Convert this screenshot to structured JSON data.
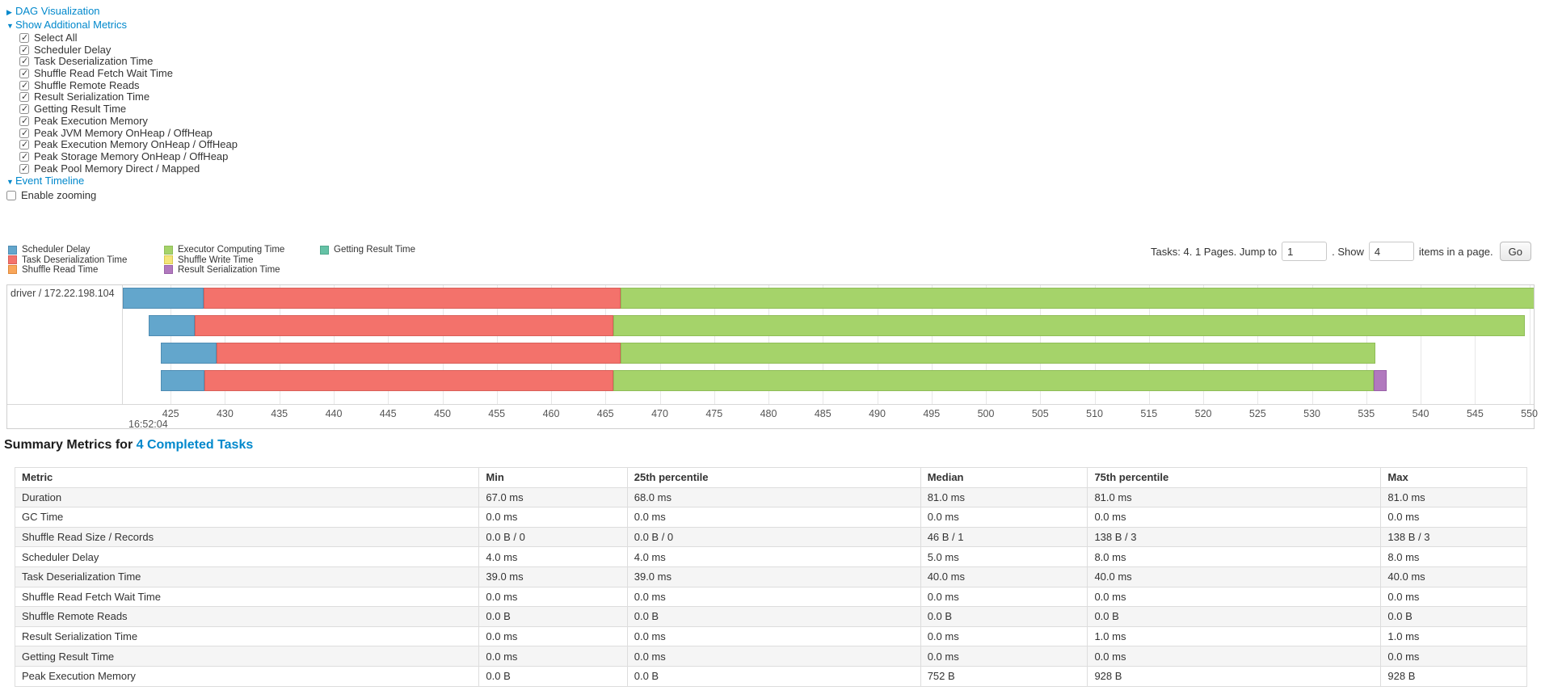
{
  "controls": {
    "dag_visualization": "DAG Visualization",
    "show_additional_metrics": "Show Additional Metrics",
    "metric_checkboxes": [
      {
        "label": "Select All",
        "checked": true
      },
      {
        "label": "Scheduler Delay",
        "checked": true
      },
      {
        "label": "Task Deserialization Time",
        "checked": true
      },
      {
        "label": "Shuffle Read Fetch Wait Time",
        "checked": true
      },
      {
        "label": "Shuffle Remote Reads",
        "checked": true
      },
      {
        "label": "Result Serialization Time",
        "checked": true
      },
      {
        "label": "Getting Result Time",
        "checked": true
      },
      {
        "label": "Peak Execution Memory",
        "checked": true
      },
      {
        "label": "Peak JVM Memory OnHeap / OffHeap",
        "checked": true
      },
      {
        "label": "Peak Execution Memory OnHeap / OffHeap",
        "checked": true
      },
      {
        "label": "Peak Storage Memory OnHeap / OffHeap",
        "checked": true
      },
      {
        "label": "Peak Pool Memory Direct / Mapped",
        "checked": true
      }
    ],
    "event_timeline": "Event Timeline",
    "enable_zooming": {
      "label": "Enable zooming",
      "checked": false
    }
  },
  "pagination": {
    "tasks_label": "Tasks: 4. 1 Pages. Jump to",
    "jump_value": "1",
    "show_label": ". Show",
    "show_value": "4",
    "items_label": "items in a page.",
    "go_label": "Go"
  },
  "legend": [
    {
      "key": "scheduler_delay",
      "label": "Scheduler Delay"
    },
    {
      "key": "task_deserialization",
      "label": "Task Deserialization Time"
    },
    {
      "key": "shuffle_read",
      "label": "Shuffle Read Time"
    },
    {
      "key": "executor_computing",
      "label": "Executor Computing Time"
    },
    {
      "key": "shuffle_write",
      "label": "Shuffle Write Time"
    },
    {
      "key": "result_serialization",
      "label": "Result Serialization Time"
    },
    {
      "key": "getting_result",
      "label": "Getting Result Time"
    }
  ],
  "chart_data": {
    "type": "timeline",
    "group_label": "driver / 172.22.198.104",
    "axis": {
      "min": 420.6,
      "max": 550.4,
      "tick_interval": 5,
      "ticks": [
        425,
        430,
        435,
        440,
        445,
        450,
        455,
        460,
        465,
        470,
        475,
        480,
        485,
        490,
        495,
        500,
        505,
        510,
        515,
        520,
        525,
        530,
        535,
        540,
        545,
        550
      ],
      "major_label": "16:52:04"
    },
    "colors": {
      "scheduler_delay": {
        "fill": "#63A6CC",
        "border": "#4E8CB3"
      },
      "task_deserialization": {
        "fill": "#F3726B",
        "border": "#D95F59"
      },
      "shuffle_read": {
        "fill": "#F9A65A",
        "border": "#E08A3C"
      },
      "executor_computing": {
        "fill": "#A5D36A",
        "border": "#8FBD57"
      },
      "shuffle_write": {
        "fill": "#F3E57A",
        "border": "#D9C94F"
      },
      "result_serialization": {
        "fill": "#B179BE",
        "border": "#9A61A8"
      },
      "getting_result": {
        "fill": "#65C2A6",
        "border": "#4FA88C"
      }
    },
    "tasks": [
      {
        "segments": [
          [
            "scheduler_delay",
            420.6,
            428.0
          ],
          [
            "task_deserialization",
            428.0,
            466.4
          ],
          [
            "executor_computing",
            466.4,
            550.9
          ]
        ]
      },
      {
        "segments": [
          [
            "scheduler_delay",
            423.0,
            427.2
          ],
          [
            "task_deserialization",
            427.2,
            465.7
          ],
          [
            "executor_computing",
            465.7,
            549.6
          ]
        ]
      },
      {
        "segments": [
          [
            "scheduler_delay",
            424.1,
            429.2
          ],
          [
            "task_deserialization",
            429.2,
            466.4
          ],
          [
            "executor_computing",
            466.4,
            535.8
          ]
        ]
      },
      {
        "segments": [
          [
            "scheduler_delay",
            424.1,
            428.1
          ],
          [
            "task_deserialization",
            428.1,
            465.7
          ],
          [
            "executor_computing",
            465.7,
            535.7
          ],
          [
            "result_serialization",
            535.7,
            536.9
          ]
        ]
      }
    ]
  },
  "summary": {
    "title_prefix": "Summary Metrics for ",
    "title_link": "4 Completed Tasks",
    "table": {
      "headers": [
        "Metric",
        "Min",
        "25th percentile",
        "Median",
        "75th percentile",
        "Max"
      ],
      "rows": [
        [
          "Duration",
          "67.0 ms",
          "68.0 ms",
          "81.0 ms",
          "81.0 ms",
          "81.0 ms"
        ],
        [
          "GC Time",
          "0.0 ms",
          "0.0 ms",
          "0.0 ms",
          "0.0 ms",
          "0.0 ms"
        ],
        [
          "Shuffle Read Size / Records",
          "0.0 B / 0",
          "0.0 B / 0",
          "46 B / 1",
          "138 B / 3",
          "138 B / 3"
        ],
        [
          "Scheduler Delay",
          "4.0 ms",
          "4.0 ms",
          "5.0 ms",
          "8.0 ms",
          "8.0 ms"
        ],
        [
          "Task Deserialization Time",
          "39.0 ms",
          "39.0 ms",
          "40.0 ms",
          "40.0 ms",
          "40.0 ms"
        ],
        [
          "Shuffle Read Fetch Wait Time",
          "0.0 ms",
          "0.0 ms",
          "0.0 ms",
          "0.0 ms",
          "0.0 ms"
        ],
        [
          "Shuffle Remote Reads",
          "0.0 B",
          "0.0 B",
          "0.0 B",
          "0.0 B",
          "0.0 B"
        ],
        [
          "Result Serialization Time",
          "0.0 ms",
          "0.0 ms",
          "0.0 ms",
          "1.0 ms",
          "1.0 ms"
        ],
        [
          "Getting Result Time",
          "0.0 ms",
          "0.0 ms",
          "0.0 ms",
          "0.0 ms",
          "0.0 ms"
        ],
        [
          "Peak Execution Memory",
          "0.0 B",
          "0.0 B",
          "752 B",
          "928 B",
          "928 B"
        ]
      ]
    }
  }
}
